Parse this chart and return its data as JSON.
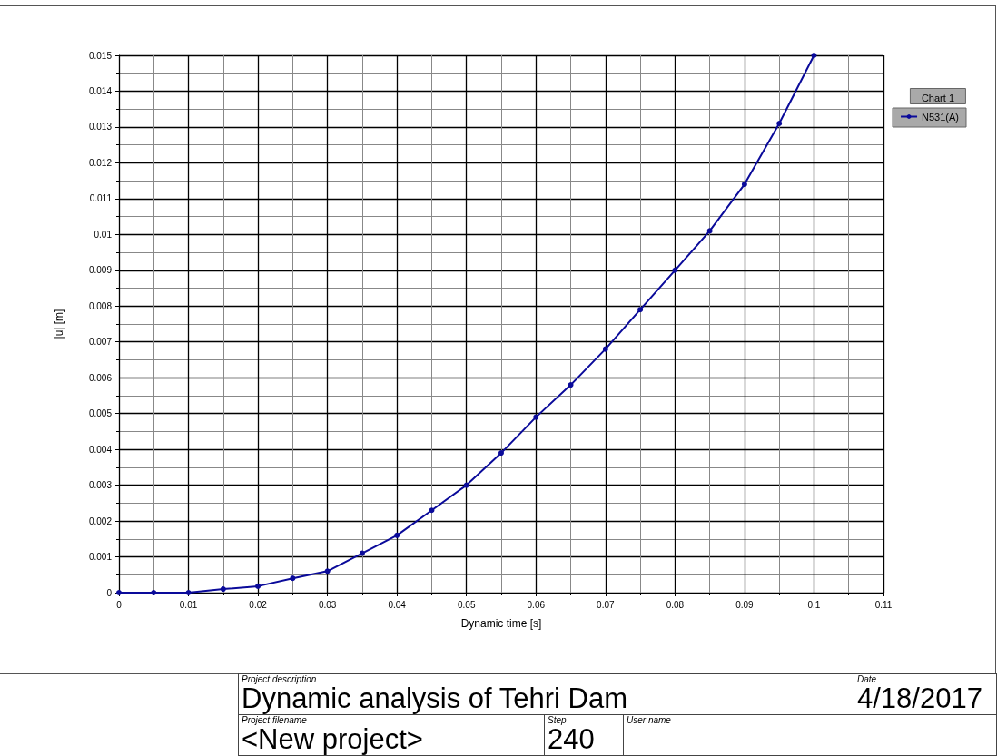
{
  "chart_data": {
    "type": "line",
    "xlabel": "Dynamic time [s]",
    "ylabel": "|u| [m]",
    "legend_title": "Chart 1",
    "series": [
      {
        "name": "N531(A)",
        "color": "#0a0a9a",
        "x": [
          0,
          0.005,
          0.01,
          0.015,
          0.02,
          0.025,
          0.03,
          0.035,
          0.04,
          0.045,
          0.05,
          0.055,
          0.06,
          0.065,
          0.07,
          0.075,
          0.08,
          0.085,
          0.09,
          0.095,
          0.1
        ],
        "values": [
          0,
          0,
          0,
          0.0001,
          0.00018,
          0.0004,
          0.0006,
          0.0011,
          0.0016,
          0.0023,
          0.003,
          0.0039,
          0.0049,
          0.0058,
          0.0068,
          0.0079,
          0.009,
          0.0101,
          0.0114,
          0.0131,
          0.015
        ]
      }
    ],
    "xlim": [
      0,
      0.11
    ],
    "xticks": [
      0,
      0.01,
      0.02,
      0.03,
      0.04,
      0.05,
      0.06,
      0.07,
      0.08,
      0.09,
      0.1,
      0.11
    ],
    "ylim": [
      0,
      0.015
    ],
    "yticks": [
      0,
      0.001,
      0.002,
      0.003,
      0.004,
      0.005,
      0.006,
      0.007,
      0.008,
      0.009,
      0.01,
      0.011,
      0.012,
      0.013,
      0.014,
      0.015
    ],
    "grid": true,
    "legend": "top right",
    "marker": "circle",
    "line_style": "solid",
    "annotations": [
      "Project description",
      "Dynamic analysis of Tehri Dam",
      "Date",
      "4/18/2017",
      "Project filename",
      "<New project>",
      "Step",
      "240",
      "User name"
    ]
  }
}
